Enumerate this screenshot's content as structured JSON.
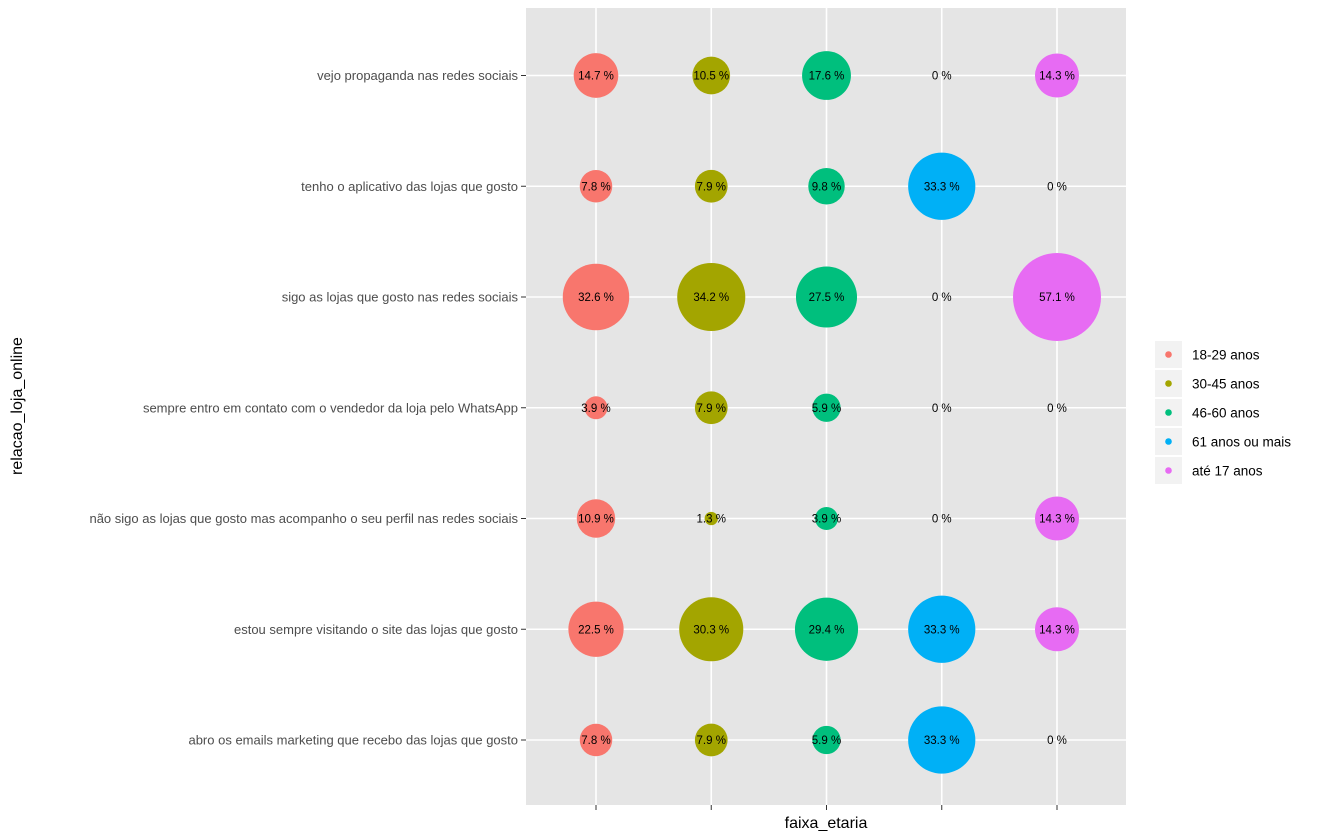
{
  "chart_data": {
    "type": "scatter",
    "title": "",
    "xlabel": "faixa_etaria",
    "ylabel": "relacao_loja_online",
    "x_categories": [
      "18-29 anos",
      "30-45 anos",
      "46-60 anos",
      "61 anos ou mais",
      "até 17 anos"
    ],
    "x_tick_labels_shown": false,
    "y_categories": [
      "vejo propaganda nas redes sociais",
      "tenho o aplicativo das lojas que gosto",
      "sigo as lojas que gosto nas redes sociais",
      "sempre entro em contato com o vendedor da loja pelo WhatsApp",
      "não sigo as lojas que gosto  mas acompanho o seu perfil nas redes sociais",
      "estou sempre visitando o site das lojas que gosto",
      "abro os emails marketing que recebo das lojas que gosto"
    ],
    "series": [
      {
        "name": "18-29 anos",
        "color": "#F8766D",
        "values": [
          14.7,
          7.8,
          32.6,
          3.9,
          10.9,
          22.5,
          7.8
        ],
        "labels": [
          "14.7 %",
          "7.8 %",
          "32.6 %",
          "3.9 %",
          "10.9 %",
          "22.5 %",
          "7.8 %"
        ]
      },
      {
        "name": "30-45 anos",
        "color": "#A3A500",
        "values": [
          10.5,
          7.9,
          34.2,
          7.9,
          1.3,
          30.3,
          7.9
        ],
        "labels": [
          "10.5 %",
          "7.9 %",
          "34.2 %",
          "7.9 %",
          "1.3 %",
          "30.3 %",
          "7.9 %"
        ]
      },
      {
        "name": "46-60 anos",
        "color": "#00BF7D",
        "values": [
          17.6,
          9.8,
          27.5,
          5.9,
          3.9,
          29.4,
          5.9
        ],
        "labels": [
          "17.6 %",
          "9.8 %",
          "27.5 %",
          "5.9 %",
          "3.9 %",
          "29.4 %",
          "5.9 %"
        ]
      },
      {
        "name": "61 anos ou mais",
        "color": "#00B0F6",
        "values": [
          0,
          33.3,
          0,
          0,
          0,
          33.3,
          33.3
        ],
        "labels": [
          "0 %",
          "33.3 %",
          "0 %",
          "0 %",
          "0 %",
          "33.3 %",
          "33.3 %"
        ]
      },
      {
        "name": "até 17 anos",
        "color": "#E76BF3",
        "values": [
          14.3,
          0,
          57.1,
          0,
          14.3,
          14.3,
          0
        ],
        "labels": [
          "14.3 %",
          "0 %",
          "57.1 %",
          "0 %",
          "14.3 %",
          "14.3 %",
          "0 %"
        ]
      }
    ],
    "size_encodes": "values",
    "legend_position": "right",
    "grid": true,
    "panel_background": "#E5E5E5",
    "gridline_color": "#FFFFFF"
  }
}
